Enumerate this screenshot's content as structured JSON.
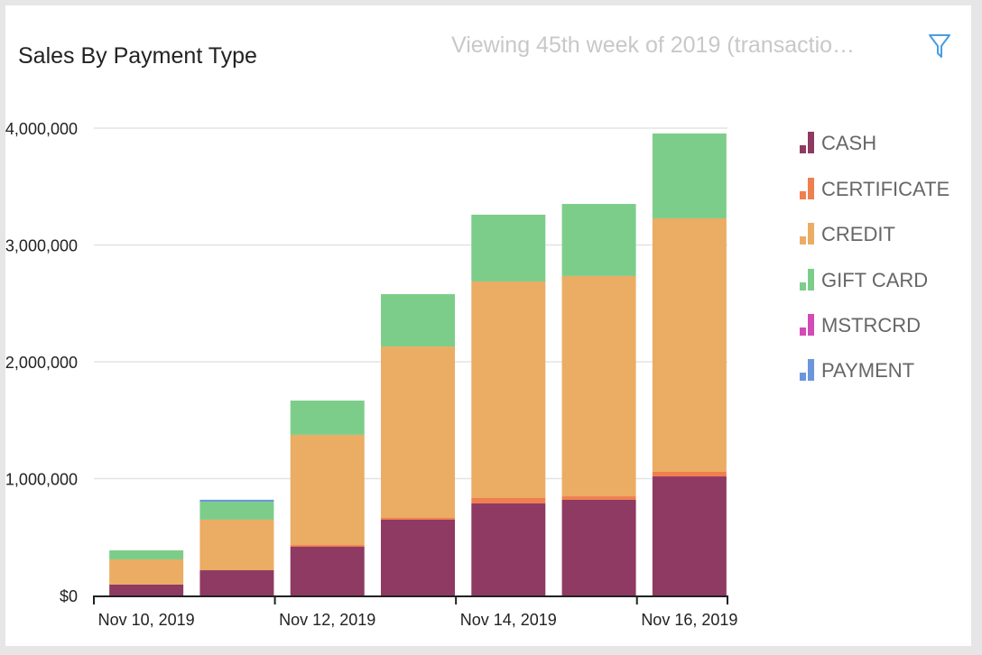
{
  "title": "Sales By Payment Type",
  "subtitle": "Viewing 45th week of 2019 (transactio…",
  "icons": {
    "filter": "filter-icon"
  },
  "chart_data": {
    "type": "bar",
    "stacked": true,
    "title": "Sales By Payment Type",
    "xlabel": "",
    "ylabel": "",
    "categories": [
      "Nov 10, 2019",
      "Nov 11, 2019",
      "Nov 12, 2019",
      "Nov 13, 2019",
      "Nov 14, 2019",
      "Nov 15, 2019",
      "Nov 16, 2019"
    ],
    "x_tick_labels": [
      "Nov 10, 2019",
      "Nov 12, 2019",
      "Nov 14, 2019",
      "Nov 16, 2019"
    ],
    "y_tick_labels": [
      "$0",
      "$1,000,000",
      "$2,000,000",
      "$3,000,000",
      "$4,000,000"
    ],
    "y_ticks": [
      0,
      1000000,
      2000000,
      3000000,
      4000000
    ],
    "ylim": [
      0,
      4000000
    ],
    "grid": true,
    "legend_position": "right",
    "series": [
      {
        "name": "CASH",
        "color": "#8e3a62",
        "values": [
          93000,
          216000,
          417000,
          649000,
          788000,
          819000,
          1019000
        ]
      },
      {
        "name": "CERTIFICATE",
        "color": "#f07f4f",
        "values": [
          0,
          0,
          15000,
          15000,
          46000,
          30000,
          39000
        ]
      },
      {
        "name": "CREDIT",
        "color": "#ebac63",
        "values": [
          216000,
          433000,
          943000,
          1467000,
          1853000,
          1885000,
          2170000
        ]
      },
      {
        "name": "GIFT CARD",
        "color": "#7dcd8a",
        "values": [
          77000,
          154000,
          293000,
          448000,
          572000,
          617000,
          726000
        ]
      },
      {
        "name": "MSTRCRD",
        "color": "#d24bb6",
        "values": [
          0,
          0,
          0,
          0,
          0,
          0,
          0
        ]
      },
      {
        "name": "PAYMENT",
        "color": "#6b96dc",
        "values": [
          0,
          16000,
          0,
          0,
          0,
          0,
          0
        ]
      }
    ]
  }
}
